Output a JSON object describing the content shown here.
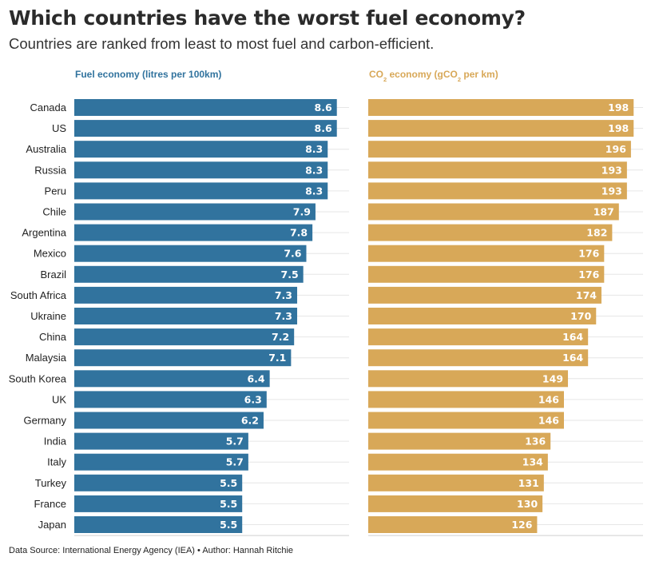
{
  "title": "Which countries have the worst fuel economy?",
  "subtitle": "Countries are ranked from least to most fuel and carbon-efficient.",
  "source": "Data Source: International Energy Agency (IEA) • Author: Hannah Ritchie",
  "colors": {
    "fuel": "#31739e",
    "co2": "#d8a858",
    "grid": "#e6e6e6"
  },
  "chart_data": [
    {
      "type": "bar",
      "orientation": "horizontal",
      "title": "Fuel economy (litres per 100km)",
      "categories": [
        "Canada",
        "US",
        "Australia",
        "Russia",
        "Peru",
        "Chile",
        "Argentina",
        "Mexico",
        "Brazil",
        "South Africa",
        "Ukraine",
        "China",
        "Malaysia",
        "South Korea",
        "UK",
        "Germany",
        "India",
        "Italy",
        "Turkey",
        "France",
        "Japan"
      ],
      "values": [
        8.6,
        8.6,
        8.3,
        8.3,
        8.3,
        7.9,
        7.8,
        7.6,
        7.5,
        7.3,
        7.3,
        7.2,
        7.1,
        6.4,
        6.3,
        6.2,
        5.7,
        5.7,
        5.5,
        5.5,
        5.5
      ],
      "xlim": [
        0,
        9
      ],
      "grid": true,
      "data_labels": true
    },
    {
      "type": "bar",
      "orientation": "horizontal",
      "title_parts": [
        "CO",
        "2",
        " economy (gCO",
        "2",
        " per km)"
      ],
      "categories": [
        "Canada",
        "US",
        "Australia",
        "Russia",
        "Peru",
        "Chile",
        "Argentina",
        "Mexico",
        "Brazil",
        "South Africa",
        "Ukraine",
        "China",
        "Malaysia",
        "South Korea",
        "UK",
        "Germany",
        "India",
        "Italy",
        "Turkey",
        "France",
        "Japan"
      ],
      "values": [
        198,
        198,
        196,
        193,
        193,
        187,
        182,
        176,
        176,
        174,
        170,
        164,
        164,
        149,
        146,
        146,
        136,
        134,
        131,
        130,
        126
      ],
      "xlim": [
        0,
        205
      ],
      "grid": true,
      "data_labels": true
    }
  ]
}
